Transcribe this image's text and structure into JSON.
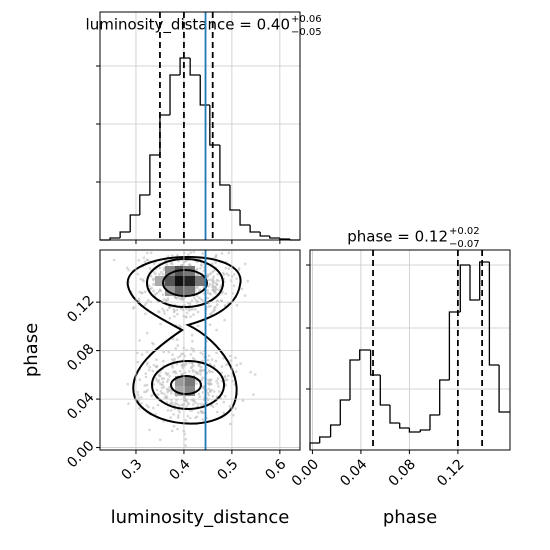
{
  "chart_data": [
    {
      "type": "histogram",
      "title": "luminosity_distance = 0.40",
      "title_upper": "+0.06",
      "title_lower": "−0.05",
      "bins": [
        0.225,
        0.246,
        0.267,
        0.288,
        0.308,
        0.329,
        0.35,
        0.371,
        0.392,
        0.413,
        0.434,
        0.454,
        0.475,
        0.496,
        0.517,
        0.538,
        0.559,
        0.579,
        0.6,
        0.621,
        0.642
      ],
      "values": [
        0,
        2,
        8,
        25,
        45,
        85,
        125,
        165,
        182,
        165,
        135,
        95,
        55,
        30,
        15,
        8,
        4,
        2,
        1,
        0
      ],
      "xlim": [
        0.225,
        0.642
      ],
      "ylim": [
        0,
        228
      ],
      "xticks": [
        0.3,
        0.4,
        0.5,
        0.6
      ],
      "yticks": [
        58,
        116,
        174
      ],
      "quantiles": [
        0.35,
        0.4,
        0.46
      ],
      "truth": 0.445,
      "color": "#000000",
      "truth_color": "#1f77b4",
      "grid": true
    },
    {
      "type": "density",
      "xlabel": "luminosity_distance",
      "ylabel": "phase",
      "xlim": [
        0.225,
        0.642
      ],
      "ylim": [
        -0.002,
        0.163
      ],
      "xticks": [
        0.3,
        0.4,
        0.5,
        0.6
      ],
      "yticks": [
        {
          "value": 0,
          "label": "0.00"
        },
        {
          "value": 0.04,
          "label": "0.04"
        },
        {
          "value": 0.08,
          "label": "0.08"
        },
        {
          "value": 0.12,
          "label": "0.12"
        }
      ],
      "truth": 0.445,
      "truth_color": "#1f77b4",
      "grid": true
    },
    {
      "type": "histogram",
      "title": "phase = 0.12",
      "title_upper": "+0.02",
      "title_lower": "−0.07",
      "xlabel": "phase",
      "bins": [
        -0.002,
        0.006,
        0.015,
        0.023,
        0.031,
        0.039,
        0.048,
        0.056,
        0.064,
        0.072,
        0.08,
        0.089,
        0.097,
        0.105,
        0.113,
        0.122,
        0.13,
        0.138,
        0.146,
        0.154,
        0.163
      ],
      "values": [
        7,
        13,
        25,
        50,
        90,
        100,
        75,
        45,
        27,
        22,
        18,
        20,
        35,
        70,
        138,
        185,
        150,
        188,
        85,
        38
      ],
      "xlim": [
        -0.002,
        0.163
      ],
      "ylim": [
        0,
        200
      ],
      "xticks": [
        {
          "value": 0,
          "label": "0.00"
        },
        {
          "value": 0.04,
          "label": "0.04"
        },
        {
          "value": 0.08,
          "label": "0.08"
        },
        {
          "value": 0.12,
          "label": "0.12"
        }
      ],
      "yticks": [
        61,
        122,
        185
      ],
      "quantiles": [
        0.05,
        0.12,
        0.14
      ],
      "color": "#000000",
      "grid": true
    }
  ]
}
